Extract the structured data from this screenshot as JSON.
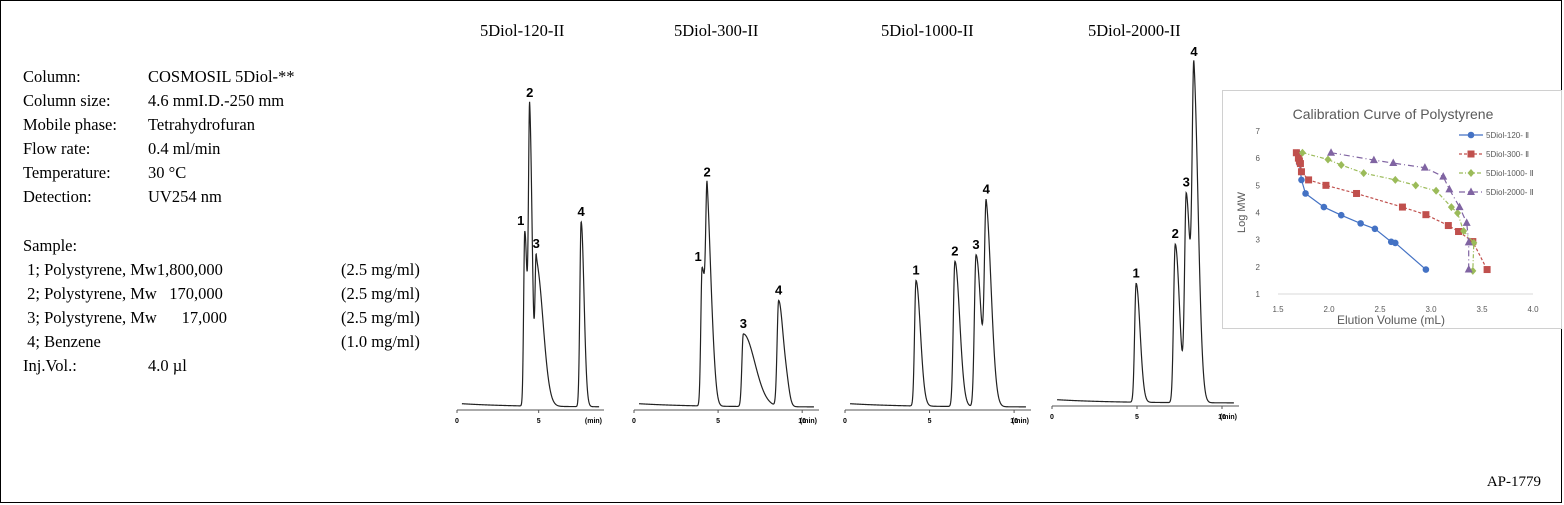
{
  "conditions": [
    {
      "key": "Column:",
      "value": "COSMOSIL  5Diol-**"
    },
    {
      "key": "Column size:",
      "value": "4.6 mmI.D.-250 mm"
    },
    {
      "key": "Mobile phase:",
      "value": "Tetrahydrofuran"
    },
    {
      "key": "Flow rate:",
      "value": "0.4 ml/min"
    },
    {
      "key": "Temperature:",
      "value": "30 °C"
    },
    {
      "key": "Detection:",
      "value": "UV254  nm"
    }
  ],
  "sample": {
    "heading": "Sample:",
    "items": [
      {
        "name": " 1; Polystyrene, Mw1,800,000",
        "conc": "(2.5 mg/ml)"
      },
      {
        "name": " 2; Polystyrene, Mw   170,000",
        "conc": "(2.5 mg/ml)"
      },
      {
        "name": " 3; Polystyrene, Mw      17,000",
        "conc": "(2.5 mg/ml)"
      },
      {
        "name": " 4; Benzene",
        "conc": "(1.0 mg/ml)"
      }
    ],
    "inj_label": "Inj.Vol.:",
    "inj_value": "4.0 µl"
  },
  "code": "AP-1779",
  "chart_data": [
    {
      "type": "line",
      "title": "5Diol-120-II",
      "xlabel": "(min)",
      "xlim": [
        0,
        9
      ],
      "xticks": [
        "0",
        "5"
      ],
      "peaks": [
        {
          "label": "1",
          "t": 4.15,
          "h": 0.53
        },
        {
          "label": "2",
          "t": 4.45,
          "h": 0.84
        },
        {
          "label": "3",
          "t": 4.85,
          "h": 0.43
        },
        {
          "label": "4",
          "t": 7.6,
          "h": 0.56
        }
      ]
    },
    {
      "type": "line",
      "title": "5Diol-300-II",
      "xlabel": "(min)",
      "xlim": [
        0,
        11
      ],
      "xticks": [
        "0",
        "5",
        "10"
      ],
      "peaks": [
        {
          "label": "1",
          "t": 4.05,
          "h": 0.42
        },
        {
          "label": "2",
          "t": 4.35,
          "h": 0.48
        },
        {
          "label": "3",
          "t": 6.5,
          "h": 0.22
        },
        {
          "label": "4",
          "t": 8.6,
          "h": 0.32
        }
      ]
    },
    {
      "type": "line",
      "title": "5Diol-1000-II",
      "xlabel": "(min)",
      "xlim": [
        0,
        11
      ],
      "xticks": [
        "0",
        "5",
        "10"
      ],
      "peaks": [
        {
          "label": "1",
          "t": 4.2,
          "h": 0.38
        },
        {
          "label": "2",
          "t": 6.5,
          "h": 0.44
        },
        {
          "label": "3",
          "t": 7.75,
          "h": 0.46
        },
        {
          "label": "4",
          "t": 8.35,
          "h": 0.57
        }
      ]
    },
    {
      "type": "line",
      "title": "5Diol-2000-II",
      "xlabel": "(min)",
      "xlim": [
        0,
        11
      ],
      "xticks": [
        "0",
        "5",
        "10"
      ],
      "peaks": [
        {
          "label": "1",
          "t": 4.95,
          "h": 0.36
        },
        {
          "label": "2",
          "t": 7.25,
          "h": 0.48
        },
        {
          "label": "3",
          "t": 7.9,
          "h": 0.62
        },
        {
          "label": "4",
          "t": 8.35,
          "h": 0.9
        }
      ]
    },
    {
      "type": "line",
      "title": "Calibration Curve of Polystyrene",
      "xlabel": "Elution Volume (mL)",
      "ylabel": "Log MW",
      "xlim": [
        1.5,
        4.0
      ],
      "ylim": [
        1,
        7
      ],
      "xticks": [
        "1.5",
        "2.0",
        "2.5",
        "3.0",
        "3.5",
        "4.0"
      ],
      "yticks": [
        "1",
        "2",
        "3",
        "4",
        "5",
        "6",
        "7"
      ],
      "legend": "right",
      "series": [
        {
          "name": "5Diol-120- Ⅱ",
          "color": "#4472c4",
          "marker": "circle",
          "dash": "",
          "points": [
            [
              1.69,
              6.2
            ],
            [
              1.71,
              5.8
            ],
            [
              1.73,
              5.2
            ],
            [
              1.77,
              4.7
            ],
            [
              1.95,
              4.2
            ],
            [
              2.12,
              3.9
            ],
            [
              2.31,
              3.6
            ],
            [
              2.45,
              3.4
            ],
            [
              2.61,
              2.92
            ],
            [
              2.65,
              2.88
            ],
            [
              2.95,
              1.9
            ]
          ]
        },
        {
          "name": "5Diol-300- Ⅱ",
          "color": "#c0504d",
          "marker": "square",
          "dash": "3,2",
          "points": [
            [
              1.68,
              6.2
            ],
            [
              1.7,
              6.0
            ],
            [
              1.71,
              5.9
            ],
            [
              1.72,
              5.8
            ],
            [
              1.73,
              5.5
            ],
            [
              1.8,
              5.2
            ],
            [
              1.97,
              5.0
            ],
            [
              2.27,
              4.7
            ],
            [
              2.72,
              4.2
            ],
            [
              2.95,
              3.92
            ],
            [
              3.17,
              3.52
            ],
            [
              3.27,
              3.3
            ],
            [
              3.41,
              2.93
            ],
            [
              3.55,
              1.9
            ]
          ]
        },
        {
          "name": "5Diol-1000- Ⅱ",
          "color": "#9bbb59",
          "marker": "diamond",
          "dash": "4,2,1,2",
          "points": [
            [
              1.74,
              6.2
            ],
            [
              1.99,
              5.95
            ],
            [
              2.12,
              5.75
            ],
            [
              2.34,
              5.45
            ],
            [
              2.65,
              5.2
            ],
            [
              2.85,
              5.0
            ],
            [
              3.05,
              4.8
            ],
            [
              3.2,
              4.2
            ],
            [
              3.26,
              3.98
            ],
            [
              3.32,
              3.32
            ],
            [
              3.42,
              2.88
            ],
            [
              3.41,
              1.85
            ]
          ]
        },
        {
          "name": "5Diol-2000- Ⅱ",
          "color": "#8064a2",
          "marker": "triangle",
          "dash": "6,3,1,3",
          "points": [
            [
              2.02,
              6.2
            ],
            [
              2.44,
              5.93
            ],
            [
              2.63,
              5.82
            ],
            [
              2.94,
              5.65
            ],
            [
              3.12,
              5.32
            ],
            [
              3.18,
              4.85
            ],
            [
              3.28,
              4.2
            ],
            [
              3.35,
              3.62
            ],
            [
              3.37,
              2.9
            ],
            [
              3.37,
              1.9
            ]
          ]
        }
      ]
    }
  ]
}
